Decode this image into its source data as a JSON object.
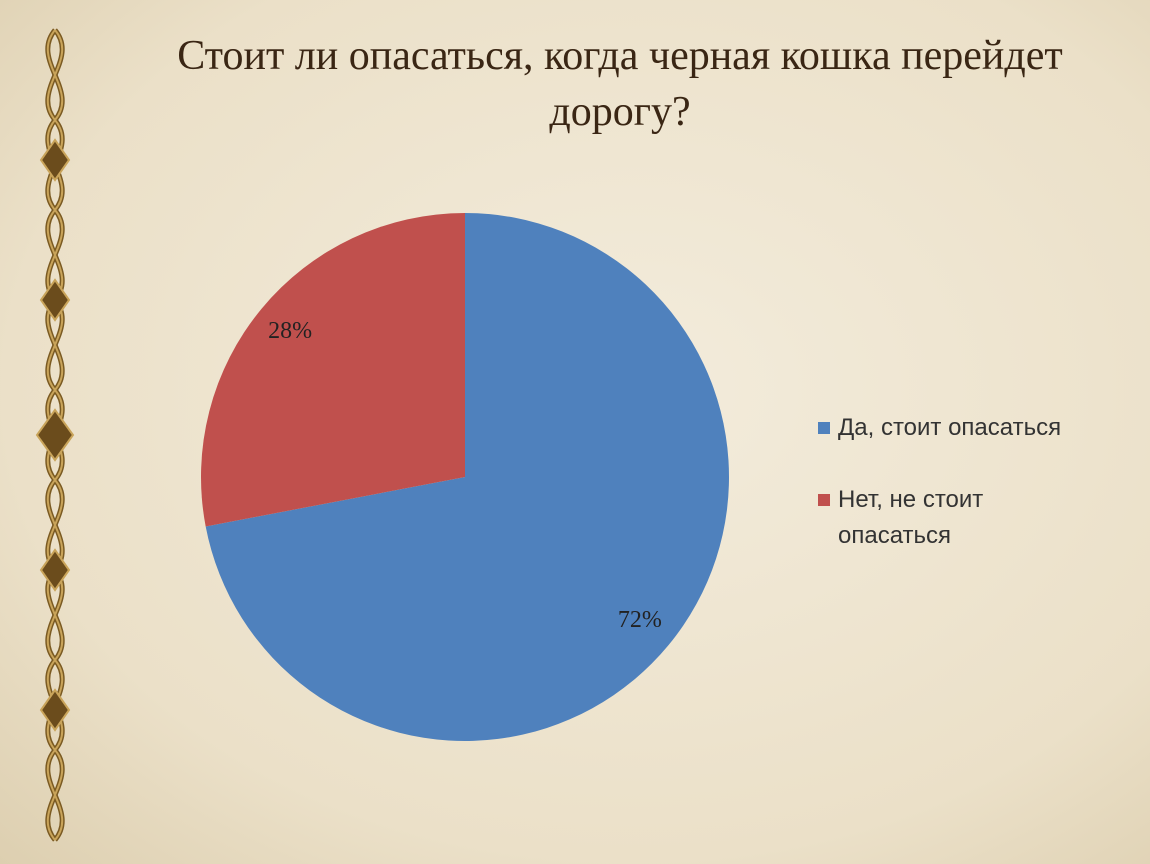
{
  "chart_data": {
    "type": "pie",
    "title": "Стоит ли опасаться, когда черная кошка перейдет дорогу?",
    "categories": [
      "Да, стоит опасаться",
      "Нет, не стоит опасаться"
    ],
    "values": [
      72,
      28
    ],
    "value_labels": [
      "72%",
      "28%"
    ],
    "colors": [
      "#4f81bd",
      "#c0504d"
    ]
  }
}
